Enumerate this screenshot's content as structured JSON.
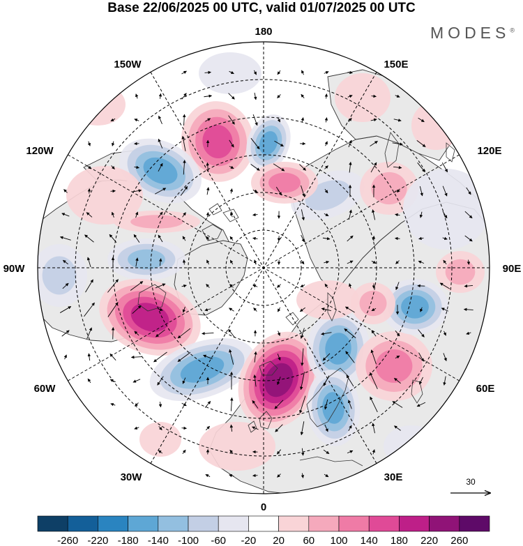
{
  "title": "Base 22/06/2025 00 UTC, valid 01/07/2025 00 UTC",
  "brand": "MODES",
  "brand_mark": "®",
  "longitude_labels": {
    "n180": "180",
    "e150": "150E",
    "e120": "120E",
    "e90": "90E",
    "e60": "60E",
    "e30": "30E",
    "n0": "0",
    "w30": "30W",
    "w60": "60W",
    "w90": "90W",
    "w120": "120W",
    "w150": "150W"
  },
  "vector_scale_label": "30",
  "colorbar": {
    "ticks": [
      "-260",
      "-220",
      "-180",
      "-140",
      "-100",
      "-60",
      "-20",
      "20",
      "60",
      "100",
      "140",
      "180",
      "220",
      "260"
    ],
    "colors": [
      "#0e3f66",
      "#135f99",
      "#2a84c0",
      "#5ea7d5",
      "#93bfe0",
      "#c3cfe5",
      "#e6e6f0",
      "#ffffff",
      "#f9d4d7",
      "#f5a9bc",
      "#ef7ba6",
      "#e04a97",
      "#be1f88",
      "#901377",
      "#5e0a68"
    ]
  },
  "colors": {
    "land": "#e9e9e9",
    "ocean": "#ffffff",
    "coastline": "#333333",
    "vector": "#000000"
  }
}
